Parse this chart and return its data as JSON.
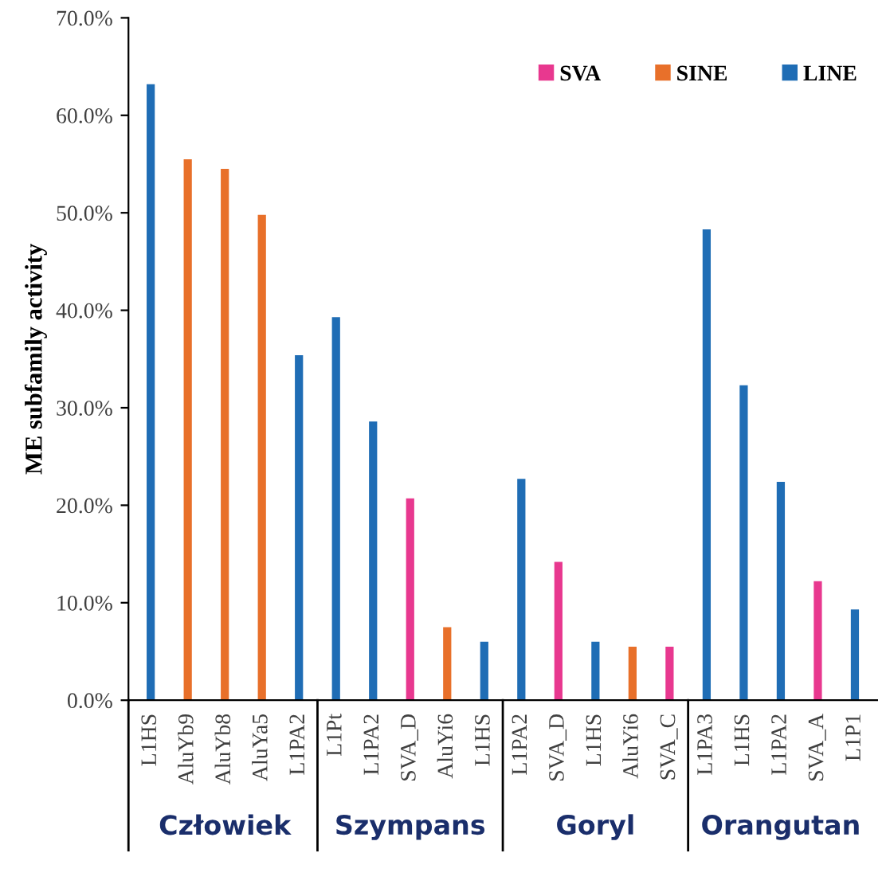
{
  "chart_data": {
    "type": "bar",
    "ylabel": "ME subfamily activity",
    "categories": [
      "L1HS",
      "AluYb9",
      "AluYb8",
      "AluYa5",
      "L1PA2",
      "L1Pt",
      "L1PA2",
      "SVA_D",
      "AluYi6",
      "L1HS",
      "L1PA2",
      "SVA_D",
      "L1HS",
      "AluYi6",
      "SVA_C",
      "L1PA3",
      "L1HS",
      "L1PA2",
      "SVA_A",
      "L1P1"
    ],
    "series": [
      {
        "name": "SVA",
        "color": "#e8388f",
        "values": [
          null,
          null,
          null,
          null,
          null,
          null,
          null,
          20.7,
          null,
          null,
          null,
          14.2,
          null,
          null,
          5.5,
          null,
          null,
          null,
          12.2,
          null
        ]
      },
      {
        "name": "SINE",
        "color": "#e8702a",
        "values": [
          null,
          55.5,
          54.5,
          49.8,
          null,
          null,
          null,
          null,
          7.5,
          null,
          null,
          null,
          null,
          5.5,
          null,
          null,
          null,
          null,
          null,
          null
        ]
      },
      {
        "name": "LINE",
        "color": "#1f6db5",
        "values": [
          63.2,
          null,
          null,
          null,
          35.4,
          39.3,
          28.6,
          null,
          null,
          6.0,
          22.7,
          null,
          6.0,
          null,
          null,
          48.3,
          32.3,
          22.4,
          null,
          9.3
        ]
      }
    ],
    "ylim": [
      0,
      70
    ],
    "yticks": [
      {
        "value": 0,
        "label": "0.0%"
      },
      {
        "value": 10,
        "label": "10.0%"
      },
      {
        "value": 20,
        "label": "20.0%"
      },
      {
        "value": 30,
        "label": "30.0%"
      },
      {
        "value": 40,
        "label": "40.0%"
      },
      {
        "value": 50,
        "label": "50.0%"
      },
      {
        "value": 60,
        "label": "60.0%"
      },
      {
        "value": 70,
        "label": "70.0%"
      }
    ],
    "annotations": [
      "Człowiek",
      "Szympans",
      "Goryl",
      "Orangutan"
    ],
    "grid": false,
    "legend": "top right"
  }
}
